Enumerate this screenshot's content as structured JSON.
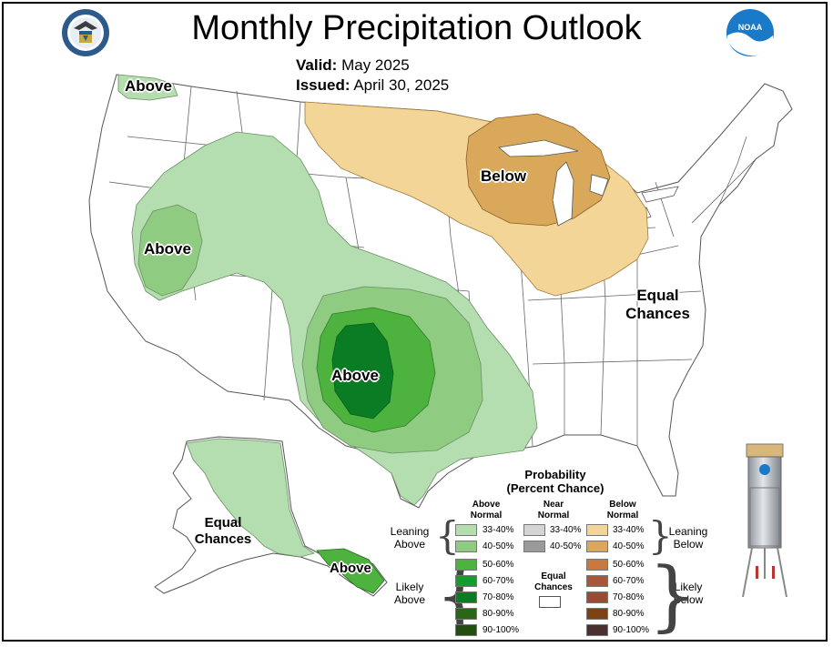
{
  "title": "Monthly Precipitation Outlook",
  "valid_label": "Valid:",
  "valid_value": "May 2025",
  "issued_label": "Issued:",
  "issued_value": "April 30, 2025",
  "logos": {
    "left": "us-dept-commerce-seal",
    "right": "noaa-logo"
  },
  "map_labels": {
    "above_nw": "Above",
    "above_west": "Above",
    "above_south": "Above",
    "below_mw": "Below",
    "equal_east_1": "Equal",
    "equal_east_2": "Chances",
    "equal_ak_1": "Equal",
    "equal_ak_2": "Chances",
    "above_ak": "Above"
  },
  "legend": {
    "title_1": "Probability",
    "title_2": "(Percent Chance)",
    "col_above_1": "Above",
    "col_above_2": "Normal",
    "col_near_1": "Near",
    "col_near_2": "Normal",
    "col_below_1": "Below",
    "col_below_2": "Normal",
    "leaning_above_1": "Leaning",
    "leaning_above_2": "Above",
    "likely_above_1": "Likely",
    "likely_above_2": "Above",
    "leaning_below_1": "Leaning",
    "leaning_below_2": "Below",
    "likely_below_1": "Likely",
    "likely_below_2": "Below",
    "equal_1": "Equal",
    "equal_2": "Chances",
    "above": [
      {
        "label": "33-40%",
        "color": "#b5deb0"
      },
      {
        "label": "40-50%",
        "color": "#8fcc82"
      },
      {
        "label": "50-60%",
        "color": "#4db33e"
      },
      {
        "label": "60-70%",
        "color": "#159c2e"
      },
      {
        "label": "70-80%",
        "color": "#0a7d24"
      },
      {
        "label": "80-90%",
        "color": "#2a6618"
      },
      {
        "label": "90-100%",
        "color": "#244d12"
      }
    ],
    "near": [
      {
        "label": "33-40%",
        "color": "#d4d4d4"
      },
      {
        "label": "40-50%",
        "color": "#9a9a9a"
      }
    ],
    "below": [
      {
        "label": "33-40%",
        "color": "#f2d597"
      },
      {
        "label": "40-50%",
        "color": "#d9a85a"
      },
      {
        "label": "50-60%",
        "color": "#c97840"
      },
      {
        "label": "60-70%",
        "color": "#a9573a"
      },
      {
        "label": "70-80%",
        "color": "#9a4a35"
      },
      {
        "label": "80-90%",
        "color": "#7d4212"
      },
      {
        "label": "90-100%",
        "color": "#4a3030"
      }
    ]
  },
  "colors": {
    "above_33": "#b5deb0",
    "above_40": "#8fcc82",
    "above_50": "#4db33e",
    "above_70": "#0a7d24",
    "below_33": "#f2d597",
    "below_40": "#d9a85a"
  }
}
